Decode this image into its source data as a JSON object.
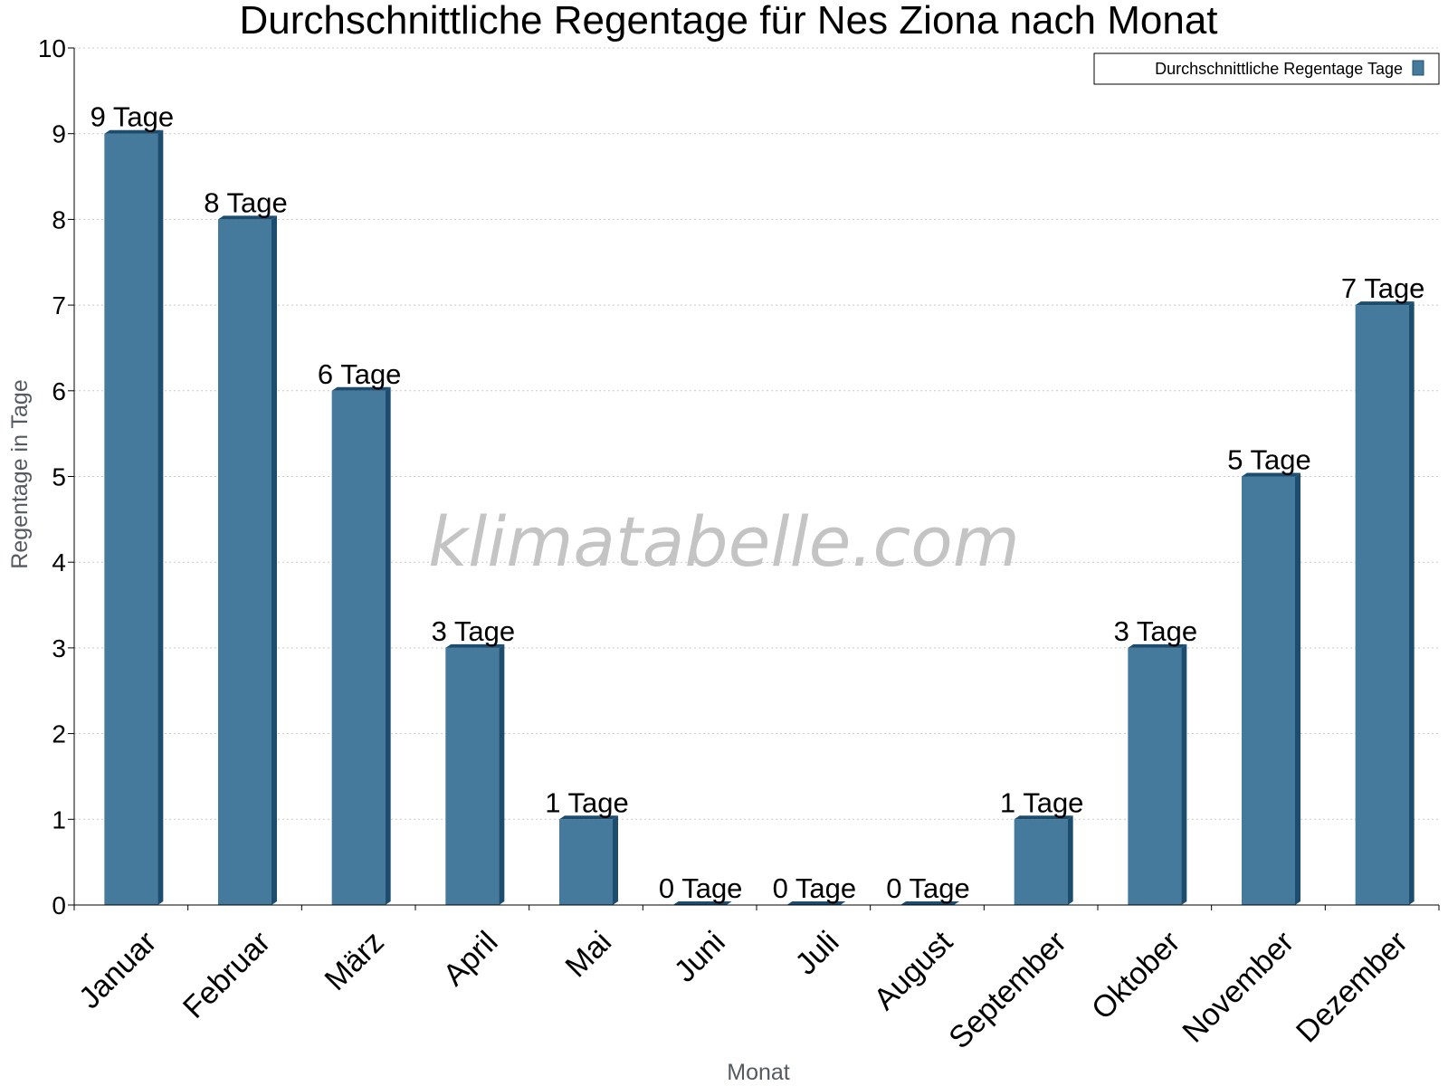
{
  "chart_data": {
    "type": "bar",
    "title": "Durchschnittliche Regentage für Nes Ziona nach Monat",
    "xlabel": "Monat",
    "ylabel": "Regentage in Tage",
    "ylim": [
      0,
      10
    ],
    "yticks": [
      "0",
      "1",
      "2",
      "3",
      "4",
      "5",
      "6",
      "7",
      "8",
      "9",
      "10"
    ],
    "grid": true,
    "legend_position": "top-right",
    "watermark": "klimatabelle.com",
    "categories": [
      "Januar",
      "Februar",
      "März",
      "April",
      "Mai",
      "Juni",
      "Juli",
      "August",
      "September",
      "Oktober",
      "November",
      "Dezember"
    ],
    "series": [
      {
        "name": "Durchschnittliche Regentage Tage",
        "values": [
          9,
          8,
          6,
          3,
          1,
          0,
          0,
          0,
          1,
          3,
          5,
          7
        ],
        "labels": [
          "9 Tage",
          "8 Tage",
          "6 Tage",
          "3 Tage",
          "1 Tage",
          "0 Tage",
          "0 Tage",
          "0 Tage",
          "1 Tage",
          "3 Tage",
          "5 Tage",
          "7 Tage"
        ],
        "color": "#457a9c",
        "side_color": "#1d4d6e"
      }
    ]
  }
}
